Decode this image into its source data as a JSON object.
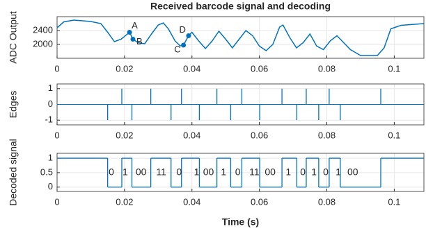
{
  "chart_data": [
    {
      "type": "line",
      "title": "Received barcode signal and decoding",
      "ylabel": "ADC Output",
      "color": "#0072bd",
      "x": [
        0,
        0.002,
        0.005,
        0.01,
        0.013,
        0.015,
        0.017,
        0.019,
        0.0215,
        0.0225,
        0.024,
        0.026,
        0.028,
        0.03,
        0.0315,
        0.033,
        0.035,
        0.0365,
        0.0375,
        0.039,
        0.04,
        0.042,
        0.044,
        0.046,
        0.048,
        0.05,
        0.052,
        0.054,
        0.056,
        0.058,
        0.06,
        0.062,
        0.064,
        0.066,
        0.067,
        0.069,
        0.071,
        0.073,
        0.075,
        0.077,
        0.079,
        0.081,
        0.083,
        0.085,
        0.087,
        0.09,
        0.095,
        0.097,
        0.099,
        0.102,
        0.1088
      ],
      "values": [
        2480,
        2650,
        2700,
        2660,
        2600,
        2350,
        2080,
        2150,
        2350,
        2150,
        2050,
        2020,
        2300,
        2560,
        2620,
        2450,
        2100,
        1960,
        1980,
        2250,
        2350,
        2100,
        1880,
        2100,
        2380,
        2150,
        1900,
        2150,
        2400,
        2250,
        1950,
        1820,
        2000,
        2500,
        2560,
        2200,
        1900,
        2050,
        2300,
        1950,
        1850,
        2100,
        2250,
        2050,
        1850,
        1680,
        1680,
        1900,
        2450,
        2550,
        2600
      ],
      "points": [
        {
          "label": "A",
          "x": 0.0215,
          "y": 2350
        },
        {
          "label": "B",
          "x": 0.0225,
          "y": 2150
        },
        {
          "label": "C",
          "x": 0.0375,
          "y": 1980
        },
        {
          "label": "D",
          "x": 0.039,
          "y": 2250
        }
      ],
      "xlim": [
        0,
        0.1088
      ],
      "xticks": [
        0,
        0.02,
        0.04,
        0.06,
        0.08,
        0.1
      ],
      "ylim": [
        1600,
        2800
      ],
      "yticks": [
        2000,
        2400
      ],
      "grid": true
    },
    {
      "type": "stem",
      "ylabel": "Edges",
      "color": "#0072bd",
      "x": [
        0.015,
        0.0192,
        0.0222,
        0.0278,
        0.0338,
        0.0369,
        0.0422,
        0.0474,
        0.0515,
        0.0548,
        0.0601,
        0.0667,
        0.0711,
        0.0739,
        0.0776,
        0.0807,
        0.084,
        0.096
      ],
      "values": [
        -1,
        1,
        -1,
        1,
        -1,
        1,
        -1,
        1,
        -1,
        1,
        -1,
        1,
        -1,
        1,
        -1,
        1,
        -1,
        1
      ],
      "xlim": [
        0,
        0.1088
      ],
      "xticks": [
        0,
        0.02,
        0.04,
        0.06,
        0.08,
        0.1
      ],
      "ylim": [
        -1.3,
        1.3
      ],
      "yticks": [
        -1,
        0,
        1
      ],
      "grid": true
    },
    {
      "type": "stairs",
      "ylabel": "Decoded signal",
      "xlabel": "Time (s)",
      "color": "#0072bd",
      "x": [
        0,
        0.015,
        0.0192,
        0.0222,
        0.0278,
        0.0338,
        0.0369,
        0.0422,
        0.0474,
        0.0515,
        0.0548,
        0.0601,
        0.0667,
        0.0711,
        0.0739,
        0.0776,
        0.0807,
        0.084,
        0.096,
        0.1088
      ],
      "values": [
        1,
        0,
        1,
        0,
        1,
        0,
        1,
        0,
        1,
        0,
        1,
        0,
        1,
        0,
        1,
        0,
        1,
        0,
        1,
        1
      ],
      "annotations": [
        {
          "text": "0",
          "x": 0.0161,
          "y": 0.5
        },
        {
          "text": "1",
          "x": 0.0202,
          "y": 0.5
        },
        {
          "text": "00",
          "x": 0.0249,
          "y": 0.5
        },
        {
          "text": "11",
          "x": 0.0309,
          "y": 0.5
        },
        {
          "text": "0",
          "x": 0.0362,
          "y": 0.5
        },
        {
          "text": "1",
          "x": 0.0414,
          "y": 0.5
        },
        {
          "text": "00",
          "x": 0.0449,
          "y": 0.5
        },
        {
          "text": "1",
          "x": 0.0494,
          "y": 0.5
        },
        {
          "text": "0",
          "x": 0.0536,
          "y": 0.5
        },
        {
          "text": "11",
          "x": 0.0585,
          "y": 0.5
        },
        {
          "text": "00",
          "x": 0.0632,
          "y": 0.5
        },
        {
          "text": "1",
          "x": 0.0686,
          "y": 0.5
        },
        {
          "text": "0",
          "x": 0.0729,
          "y": 0.5
        },
        {
          "text": "1",
          "x": 0.0762,
          "y": 0.5
        },
        {
          "text": "0",
          "x": 0.0797,
          "y": 0.5
        },
        {
          "text": "1",
          "x": 0.0834,
          "y": 0.5
        },
        {
          "text": "00",
          "x": 0.0877,
          "y": 0.5
        }
      ],
      "xlim": [
        0,
        0.1088
      ],
      "xticks": [
        0,
        0.02,
        0.04,
        0.06,
        0.08,
        0.1
      ],
      "ylim": [
        -0.15,
        1.17
      ],
      "yticks": [
        0,
        0.5,
        1
      ],
      "grid": true
    }
  ]
}
